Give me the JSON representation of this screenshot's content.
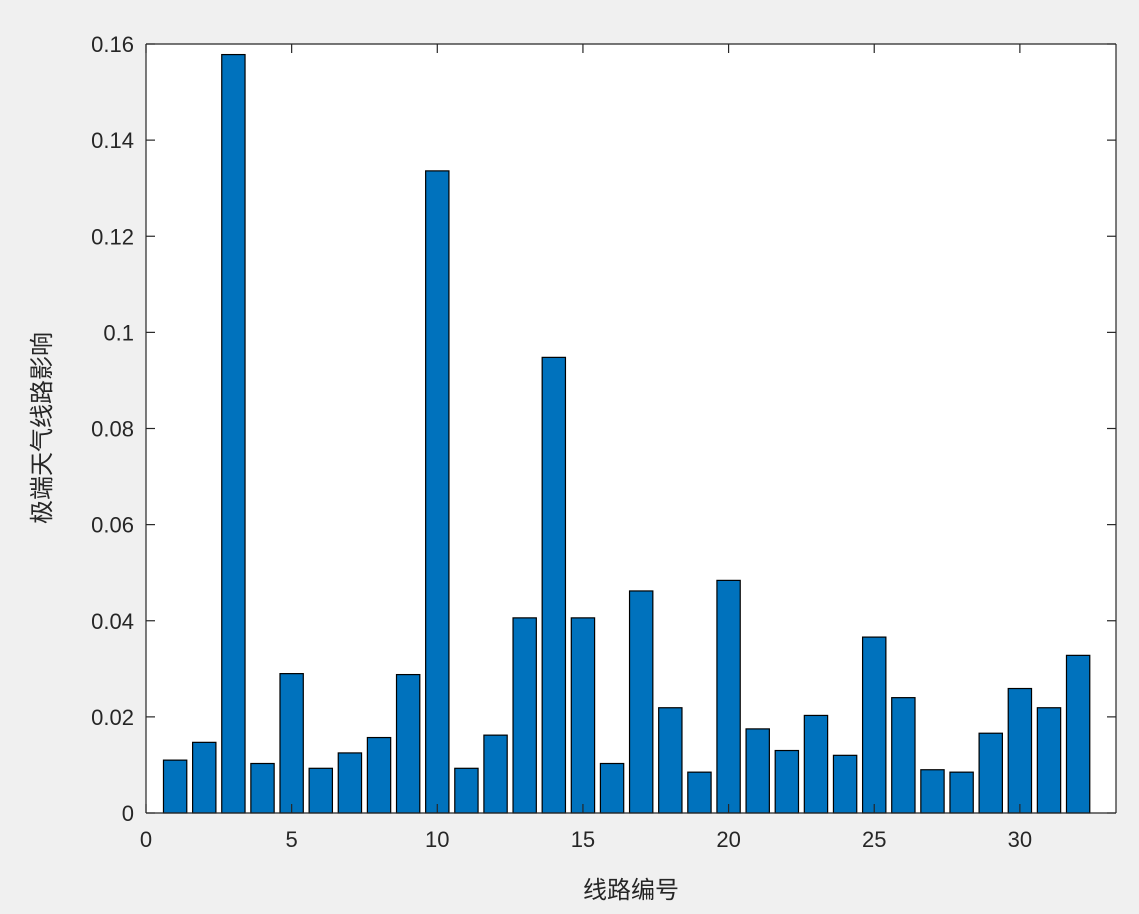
{
  "chart_data": {
    "type": "bar",
    "title": "",
    "xlabel": "线路编号",
    "ylabel": "极端天气线路影响",
    "x": [
      1,
      2,
      3,
      4,
      5,
      6,
      7,
      8,
      9,
      10,
      11,
      12,
      13,
      14,
      15,
      16,
      17,
      18,
      19,
      20,
      21,
      22,
      23,
      24,
      25,
      26,
      27,
      28,
      29,
      30,
      31,
      32
    ],
    "values": [
      0.011,
      0.0147,
      0.1578,
      0.0103,
      0.029,
      0.0093,
      0.0125,
      0.0157,
      0.0288,
      0.1336,
      0.0093,
      0.0162,
      0.0406,
      0.0948,
      0.0406,
      0.0103,
      0.0462,
      0.0219,
      0.0085,
      0.0484,
      0.0175,
      0.013,
      0.0203,
      0.012,
      0.0366,
      0.024,
      0.009,
      0.0085,
      0.0166,
      0.0259,
      0.0219,
      0.0328
    ],
    "xlim": [
      0,
      33.3
    ],
    "ylim": [
      0,
      0.16
    ],
    "xticks": [
      0,
      5,
      10,
      15,
      20,
      25,
      30
    ],
    "xtick_labels": [
      "0",
      "5",
      "10",
      "15",
      "20",
      "25",
      "30"
    ],
    "yticks": [
      0,
      0.02,
      0.04,
      0.06,
      0.08,
      0.1,
      0.12,
      0.14,
      0.16
    ],
    "ytick_labels": [
      "0",
      "0.02",
      "0.04",
      "0.06",
      "0.08",
      "0.1",
      "0.12",
      "0.14",
      "0.16"
    ],
    "bar_color": "#0072BD",
    "grid": false,
    "legend": "none"
  }
}
